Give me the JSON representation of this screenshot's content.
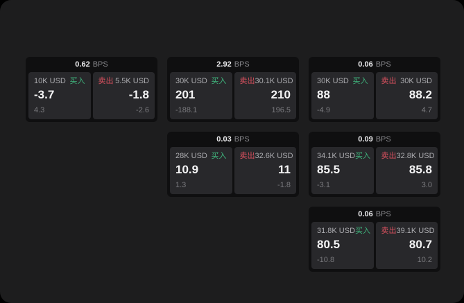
{
  "colors": {
    "page-bg": "#000000",
    "surface": "#1d1d1e",
    "card": "#0f0f10",
    "panel": "#28282b",
    "buy": "#3fb57d",
    "sell": "#d8505e"
  },
  "labels": {
    "bps": "BPS",
    "buy": "买入",
    "sell": "卖出"
  },
  "cards": [
    {
      "bps": "0.62",
      "buy": {
        "amount": "10K USD",
        "value": "-3.7",
        "delta": "4.3"
      },
      "sell": {
        "amount": "5.5K USD",
        "value": "-1.8",
        "delta": "-2.6"
      }
    },
    {
      "bps": "2.92",
      "buy": {
        "amount": "30K USD",
        "value": "201",
        "delta": "-188.1"
      },
      "sell": {
        "amount": "30.1K USD",
        "value": "210",
        "delta": "196.5"
      }
    },
    {
      "bps": "0.06",
      "buy": {
        "amount": "30K USD",
        "value": "88",
        "delta": "-4.9"
      },
      "sell": {
        "amount": "30K USD",
        "value": "88.2",
        "delta": "4.7"
      }
    },
    {
      "bps": "0.03",
      "buy": {
        "amount": "28K USD",
        "value": "10.9",
        "delta": "1.3"
      },
      "sell": {
        "amount": "32.6K USD",
        "value": "11",
        "delta": "-1.8"
      }
    },
    {
      "bps": "0.09",
      "buy": {
        "amount": "34.1K USD",
        "value": "85.5",
        "delta": "-3.1"
      },
      "sell": {
        "amount": "32.8K USD",
        "value": "85.8",
        "delta": "3.0"
      }
    },
    {
      "bps": "0.06",
      "buy": {
        "amount": "31.8K USD",
        "value": "80.5",
        "delta": "-10.8"
      },
      "sell": {
        "amount": "39.1K USD",
        "value": "80.7",
        "delta": "10.2"
      }
    }
  ]
}
